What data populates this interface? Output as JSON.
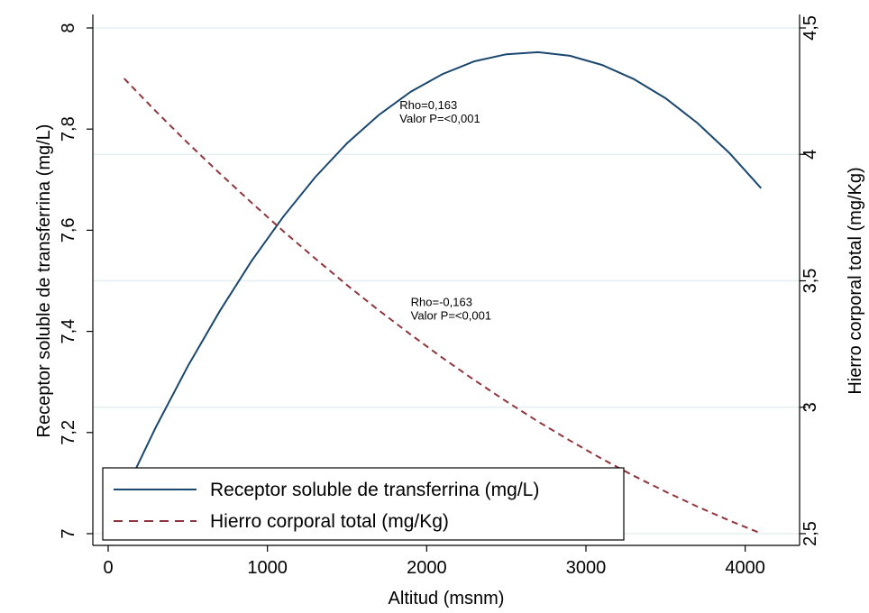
{
  "chart_data": {
    "type": "line",
    "xlabel": "Altitud (msnm)",
    "ylabel_left": "Receptor soluble de transferrina (mg/L)",
    "ylabel_right": "Hierro corporal total (mg/Kg)",
    "xlim": [
      0,
      4200
    ],
    "ylim_left": [
      7.0,
      8.0
    ],
    "ylim_right": [
      2.5,
      4.5
    ],
    "x_ticks": [
      0,
      1000,
      2000,
      3000,
      4000
    ],
    "x_tick_labels": [
      "0",
      "1000",
      "2000",
      "3000",
      "4000"
    ],
    "y_left_ticks": [
      7.0,
      7.2,
      7.4,
      7.6,
      7.8,
      8.0
    ],
    "y_left_tick_labels": [
      "7",
      "7,2",
      "7,4",
      "7,6",
      "7,8",
      "8"
    ],
    "y_right_ticks": [
      2.5,
      3.0,
      3.5,
      4.0,
      4.5
    ],
    "y_right_tick_labels": [
      "2,5",
      "3",
      "3,5",
      "4",
      "4,5"
    ],
    "grid": true,
    "legend_position": "bottom-left",
    "series": [
      {
        "name": "Receptor soluble de transferrina (mg/L)",
        "axis": "left",
        "style": "solid",
        "color": "#1a476f",
        "x": [
          100,
          300,
          500,
          700,
          900,
          1100,
          1300,
          1500,
          1700,
          1900,
          2100,
          2300,
          2500,
          2700,
          2900,
          3100,
          3300,
          3500,
          3700,
          3900,
          4100
        ],
        "y": [
          7.08,
          7.211,
          7.331,
          7.44,
          7.539,
          7.627,
          7.705,
          7.772,
          7.828,
          7.874,
          7.909,
          7.934,
          7.948,
          7.952,
          7.945,
          7.927,
          7.899,
          7.861,
          7.812,
          7.753,
          7.683
        ]
      },
      {
        "name": "Hierro corporal total (mg/Kg)",
        "axis": "right",
        "style": "dashed",
        "color": "#90353b",
        "x": [
          100,
          300,
          500,
          700,
          900,
          1100,
          1300,
          1500,
          1700,
          1900,
          2100,
          2300,
          2500,
          2700,
          2900,
          3100,
          3300,
          3500,
          3700,
          3900,
          4100
        ],
        "y": [
          4.3,
          4.17,
          4.045,
          3.925,
          3.809,
          3.696,
          3.588,
          3.483,
          3.383,
          3.287,
          3.195,
          3.107,
          3.023,
          2.943,
          2.868,
          2.796,
          2.729,
          2.666,
          2.607,
          2.552,
          2.501
        ]
      }
    ],
    "annotations": [
      {
        "lines": [
          "Rho=0,163",
          "Valor P=<0,001"
        ],
        "x": 1830,
        "y_left": 7.84
      },
      {
        "lines": [
          "Rho=-0,163",
          "Valor P=<0,001"
        ],
        "x": 1900,
        "y_left": 7.45
      }
    ]
  }
}
